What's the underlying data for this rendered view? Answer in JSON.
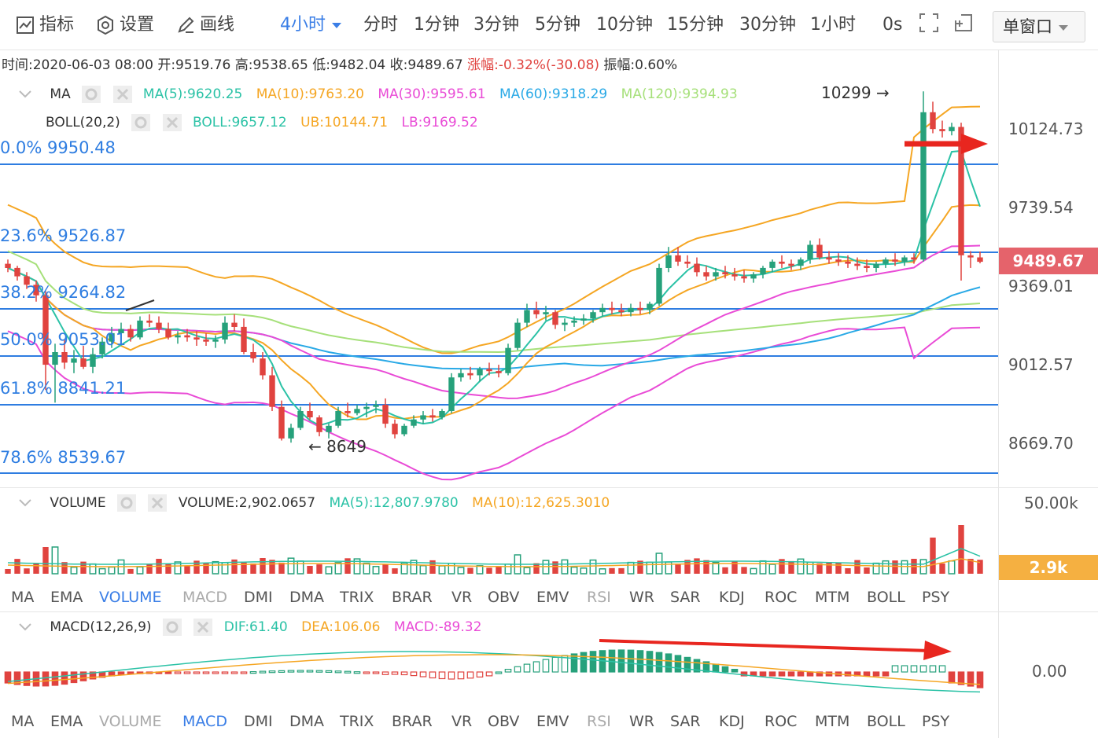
{
  "toolbar": {
    "indicator_label": "指标",
    "settings_label": "设置",
    "draw_label": "画线",
    "active_period": "4小时",
    "periods": [
      "分时",
      "1分钟",
      "3分钟",
      "5分钟",
      "10分钟",
      "15分钟",
      "30分钟",
      "1小时"
    ],
    "seconds": "0s",
    "window_mode": "单窗口"
  },
  "infobar": {
    "time": "时间:2020-06-03 08:00",
    "open": "开:9519.76",
    "high": "高:9538.65",
    "low": "低:9482.04",
    "close": "收:9489.67",
    "change": "涨幅:-0.32%(-30.08)",
    "amplitude": "振幅:0.60%"
  },
  "ma_legend": {
    "name": "MA",
    "ma5": "MA(5):9620.25",
    "ma10": "MA(10):9763.20",
    "ma30": "MA(30):9595.61",
    "ma60": "MA(60):9318.29",
    "ma120": "MA(120):9394.93"
  },
  "boll_legend": {
    "name": "BOLL(20,2)",
    "boll": "BOLL:9657.12",
    "ub": "UB:10144.71",
    "lb": "LB:9169.52"
  },
  "fib_levels": [
    "0.0% 9950.48",
    "23.6% 9526.87",
    "38.2% 9264.82",
    "50.0% 9053.01",
    "61.8% 8841.21",
    "78.6% 8539.67"
  ],
  "annotations": {
    "high": "10299",
    "low": "8649"
  },
  "price_axis": [
    "10124.73",
    "9739.54",
    "9369.01",
    "9012.57",
    "8669.70"
  ],
  "current_price": "9489.67",
  "volume_legend": {
    "name": "VOLUME",
    "volume": "VOLUME:2,902.0657",
    "ma5": "MA(5):12,807.9780",
    "ma10": "MA(10):12,625.3010"
  },
  "volume_axis": {
    "top": "50.00k",
    "current": "2.9k"
  },
  "indicator_tabs": [
    "MA",
    "EMA",
    "VOLUME",
    "MACD",
    "DMI",
    "DMA",
    "TRIX",
    "BRAR",
    "VR",
    "OBV",
    "EMV",
    "RSI",
    "WR",
    "SAR",
    "KDJ",
    "ROC",
    "MTM",
    "BOLL",
    "PSY"
  ],
  "macd_legend": {
    "name": "MACD(12,26,9)",
    "dif": "DIF:61.40",
    "dea": "DEA:106.06",
    "macd": "MACD:-89.32"
  },
  "macd_axis": {
    "zero": "0.00"
  },
  "colors": {
    "up": "#26a17b",
    "down": "#e0433f",
    "accent": "#3a7ee6",
    "ma5": "#2bc2a6",
    "ma10": "#f5a623",
    "ma30": "#e94bd6",
    "ma60": "#29a9e6",
    "ma120": "#a6e07a",
    "fib": "#2e7de1",
    "price_tag": "#e5636b",
    "vol_tag": "#f5b041"
  },
  "chart_data": {
    "type": "candlestick",
    "price_range": [
      8500,
      10300
    ],
    "candles": [
      [
        9480,
        9500,
        9440,
        9460
      ],
      [
        9460,
        9470,
        9400,
        9420
      ],
      [
        9420,
        9440,
        9360,
        9380
      ],
      [
        9380,
        9400,
        9300,
        9330
      ],
      [
        9330,
        9350,
        8880,
        9000
      ],
      [
        9000,
        9100,
        8820,
        9060
      ],
      [
        9060,
        9120,
        8980,
        9010
      ],
      [
        9010,
        9070,
        8960,
        9030
      ],
      [
        9030,
        9090,
        8980,
        8990
      ],
      [
        8990,
        9080,
        8960,
        9050
      ],
      [
        9050,
        9130,
        9030,
        9110
      ],
      [
        9110,
        9180,
        9080,
        9150
      ],
      [
        9150,
        9200,
        9110,
        9170
      ],
      [
        9170,
        9190,
        9110,
        9130
      ],
      [
        9130,
        9230,
        9120,
        9210
      ],
      [
        9210,
        9240,
        9180,
        9200
      ],
      [
        9200,
        9230,
        9150,
        9170
      ],
      [
        9170,
        9200,
        9120,
        9130
      ],
      [
        9130,
        9160,
        9100,
        9140
      ],
      [
        9140,
        9170,
        9110,
        9130
      ],
      [
        9130,
        9160,
        9090,
        9120
      ],
      [
        9120,
        9150,
        9090,
        9110
      ],
      [
        9110,
        9140,
        9080,
        9120
      ],
      [
        9120,
        9230,
        9100,
        9200
      ],
      [
        9200,
        9240,
        9160,
        9180
      ],
      [
        9180,
        9220,
        9050,
        9060
      ],
      [
        9060,
        9100,
        9010,
        9030
      ],
      [
        9030,
        9060,
        8930,
        8950
      ],
      [
        8950,
        8990,
        8780,
        8800
      ],
      [
        8800,
        8830,
        8640,
        8650
      ],
      [
        8650,
        8720,
        8630,
        8700
      ],
      [
        8700,
        8800,
        8690,
        8780
      ],
      [
        8780,
        8820,
        8740,
        8750
      ],
      [
        8750,
        8760,
        8660,
        8680
      ],
      [
        8680,
        8720,
        8650,
        8710
      ],
      [
        8710,
        8800,
        8700,
        8780
      ],
      [
        8780,
        8820,
        8750,
        8770
      ],
      [
        8770,
        8810,
        8760,
        8790
      ],
      [
        8790,
        8820,
        8750,
        8800
      ],
      [
        8800,
        8830,
        8770,
        8810
      ],
      [
        8810,
        8840,
        8700,
        8720
      ],
      [
        8720,
        8740,
        8650,
        8670
      ],
      [
        8670,
        8720,
        8660,
        8710
      ],
      [
        8710,
        8760,
        8700,
        8740
      ],
      [
        8740,
        8780,
        8720,
        8760
      ],
      [
        8760,
        8790,
        8730,
        8750
      ],
      [
        8750,
        8790,
        8740,
        8780
      ],
      [
        8780,
        8960,
        8770,
        8940
      ],
      [
        8940,
        8980,
        8920,
        8960
      ],
      [
        8960,
        8990,
        8930,
        8950
      ],
      [
        8950,
        8990,
        8920,
        8980
      ],
      [
        8980,
        9010,
        8950,
        8970
      ],
      [
        8970,
        9000,
        8940,
        8960
      ],
      [
        8960,
        9100,
        8950,
        9080
      ],
      [
        9080,
        9220,
        9070,
        9200
      ],
      [
        9200,
        9290,
        9180,
        9260
      ],
      [
        9260,
        9300,
        9220,
        9240
      ],
      [
        9240,
        9280,
        9210,
        9250
      ],
      [
        9250,
        9260,
        9170,
        9190
      ],
      [
        9190,
        9220,
        9160,
        9200
      ],
      [
        9200,
        9230,
        9180,
        9210
      ],
      [
        9210,
        9240,
        9190,
        9220
      ],
      [
        9220,
        9260,
        9200,
        9250
      ],
      [
        9250,
        9290,
        9230,
        9270
      ],
      [
        9270,
        9300,
        9240,
        9260
      ],
      [
        9260,
        9290,
        9230,
        9250
      ],
      [
        9250,
        9290,
        9230,
        9270
      ],
      [
        9270,
        9300,
        9240,
        9260
      ],
      [
        9260,
        9300,
        9240,
        9290
      ],
      [
        9290,
        9480,
        9280,
        9460
      ],
      [
        9460,
        9560,
        9440,
        9520
      ],
      [
        9520,
        9560,
        9470,
        9490
      ],
      [
        9490,
        9520,
        9460,
        9480
      ],
      [
        9480,
        9510,
        9420,
        9440
      ],
      [
        9440,
        9470,
        9400,
        9420
      ],
      [
        9420,
        9460,
        9400,
        9440
      ],
      [
        9440,
        9470,
        9410,
        9430
      ],
      [
        9430,
        9460,
        9400,
        9420
      ],
      [
        9420,
        9450,
        9390,
        9410
      ],
      [
        9410,
        9440,
        9390,
        9430
      ],
      [
        9430,
        9470,
        9410,
        9460
      ],
      [
        9460,
        9500,
        9440,
        9490
      ],
      [
        9490,
        9520,
        9460,
        9480
      ],
      [
        9480,
        9500,
        9450,
        9470
      ],
      [
        9470,
        9510,
        9450,
        9500
      ],
      [
        9500,
        9590,
        9480,
        9570
      ],
      [
        9570,
        9600,
        9500,
        9510
      ],
      [
        9510,
        9540,
        9480,
        9500
      ],
      [
        9500,
        9530,
        9470,
        9490
      ],
      [
        9490,
        9520,
        9460,
        9480
      ],
      [
        9480,
        9510,
        9450,
        9470
      ],
      [
        9470,
        9500,
        9440,
        9460
      ],
      [
        9460,
        9490,
        9440,
        9480
      ],
      [
        9480,
        9510,
        9460,
        9500
      ],
      [
        9500,
        9530,
        9470,
        9490
      ],
      [
        9490,
        9520,
        9470,
        9510
      ],
      [
        9510,
        9530,
        9480,
        9500
      ],
      [
        9500,
        10299,
        9490,
        10200
      ],
      [
        10200,
        10250,
        10100,
        10120
      ],
      [
        10120,
        10160,
        10080,
        10110
      ],
      [
        10110,
        10150,
        10090,
        10130
      ],
      [
        10130,
        10150,
        9400,
        9520
      ],
      [
        9520,
        9540,
        9460,
        9510
      ],
      [
        9510,
        9538,
        9482,
        9489
      ]
    ],
    "volume_ylim": [
      0,
      50000
    ],
    "macd_zero": 0
  }
}
